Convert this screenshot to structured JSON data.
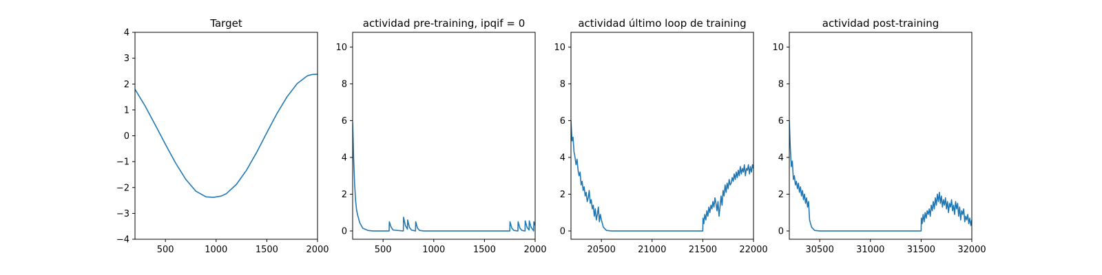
{
  "chart_data": [
    {
      "type": "line",
      "title": "Target",
      "xlim": [
        200,
        2000
      ],
      "ylim": [
        -4,
        4
      ],
      "xticks": [
        500,
        1000,
        1500,
        2000
      ],
      "yticks": [
        -4,
        -3,
        -2,
        -1,
        0,
        1,
        2,
        3,
        4
      ],
      "color": "#1f77b4",
      "series": [
        {
          "x": [
            200,
            300,
            400,
            500,
            600,
            700,
            800,
            900,
            975,
            1050,
            1100,
            1200,
            1300,
            1400,
            1500,
            1600,
            1700,
            1800,
            1900,
            1950,
            2000
          ],
          "y": [
            1.8,
            1.15,
            0.42,
            -0.33,
            -1.05,
            -1.68,
            -2.14,
            -2.36,
            -2.38,
            -2.33,
            -2.24,
            -1.88,
            -1.33,
            -0.64,
            0.12,
            0.86,
            1.51,
            2.02,
            2.32,
            2.37,
            2.38
          ]
        }
      ]
    },
    {
      "type": "line",
      "title": "actividad pre-training, ipqif = 0",
      "xlim": [
        200,
        2000
      ],
      "ylim": [
        -0.45,
        10.8
      ],
      "xticks": [
        500,
        1000,
        1500,
        2000
      ],
      "yticks": [
        0,
        2,
        4,
        6,
        8,
        10
      ],
      "color": "#1f77b4",
      "series": [
        {
          "x": [
            200,
            210,
            220,
            230,
            240,
            250,
            270,
            300,
            350,
            400,
            560,
            562,
            580,
            600,
            700,
            702,
            720,
            740,
            742,
            760,
            780,
            820,
            822,
            840,
            860,
            900,
            1000,
            1200,
            1400,
            1600,
            1750,
            1752,
            1770,
            1790,
            1830,
            1832,
            1850,
            1870,
            1900,
            1902,
            1920,
            1940,
            1942,
            1960,
            1980,
            1985,
            1987,
            2000
          ],
          "y": [
            5.9,
            3.9,
            2.5,
            1.6,
            1.1,
            0.85,
            0.45,
            0.15,
            0.03,
            0.0,
            0.0,
            0.5,
            0.2,
            0.05,
            0.0,
            0.75,
            0.3,
            0.1,
            0.6,
            0.2,
            0.05,
            0.0,
            0.5,
            0.15,
            0.03,
            0.0,
            0.0,
            0.0,
            0.0,
            0.0,
            0.0,
            0.5,
            0.15,
            0.03,
            0.0,
            0.5,
            0.15,
            0.03,
            0.0,
            0.55,
            0.2,
            0.05,
            0.55,
            0.2,
            0.05,
            0.0,
            0.5,
            0.3
          ]
        }
      ]
    },
    {
      "type": "line",
      "title": "actividad último loop de training",
      "xlim": [
        20200,
        22000
      ],
      "ylim": [
        -0.45,
        10.8
      ],
      "xticks": [
        20500,
        21000,
        21500,
        22000
      ],
      "yticks": [
        0,
        2,
        4,
        6,
        8,
        10
      ],
      "color": "#1f77b4",
      "series": [
        {
          "x": [
            20200,
            20210,
            20220,
            20230,
            20240,
            20250,
            20260,
            20270,
            20280,
            20290,
            20300,
            20310,
            20320,
            20330,
            20340,
            20350,
            20360,
            20370,
            20380,
            20390,
            20400,
            20410,
            20420,
            20430,
            20440,
            20450,
            20460,
            20470,
            20480,
            20490,
            20500,
            20520,
            20550,
            20600,
            20800,
            21000,
            21200,
            21400,
            21500,
            21502,
            21510,
            21520,
            21530,
            21540,
            21550,
            21560,
            21570,
            21580,
            21590,
            21600,
            21610,
            21620,
            21630,
            21640,
            21650,
            21660,
            21670,
            21680,
            21690,
            21700,
            21710,
            21720,
            21730,
            21740,
            21750,
            21760,
            21770,
            21780,
            21790,
            21800,
            21810,
            21820,
            21830,
            21840,
            21850,
            21860,
            21870,
            21880,
            21890,
            21900,
            21910,
            21920,
            21930,
            21940,
            21950,
            21960,
            21970,
            21980,
            21990,
            22000
          ],
          "y": [
            6.0,
            4.9,
            5.1,
            4.3,
            4.0,
            3.6,
            3.9,
            3.3,
            3.0,
            3.2,
            2.5,
            2.7,
            2.2,
            2.4,
            1.9,
            2.1,
            1.6,
            1.8,
            2.2,
            1.5,
            1.7,
            1.2,
            1.4,
            0.8,
            1.2,
            0.6,
            0.9,
            1.3,
            0.5,
            0.9,
            0.6,
            0.2,
            0.03,
            0.0,
            0.0,
            0.0,
            0.0,
            0.0,
            0.0,
            0.7,
            0.4,
            0.9,
            0.6,
            1.1,
            0.8,
            1.3,
            1.0,
            1.4,
            1.2,
            1.6,
            1.3,
            1.8,
            1.5,
            1.1,
            1.6,
            0.8,
            1.3,
            1.9,
            1.4,
            2.2,
            1.9,
            2.5,
            2.1,
            2.6,
            2.3,
            2.8,
            2.5,
            2.6,
            2.9,
            2.7,
            3.1,
            2.8,
            3.2,
            2.9,
            3.3,
            3.0,
            3.5,
            3.1,
            3.4,
            3.2,
            3.6,
            3.0,
            3.4,
            3.3,
            3.6,
            3.1,
            3.5,
            3.2,
            3.6,
            3.4
          ]
        }
      ]
    },
    {
      "type": "line",
      "title": "actividad post-training",
      "xlim": [
        30200,
        32000
      ],
      "ylim": [
        -0.45,
        10.8
      ],
      "xticks": [
        30500,
        31000,
        31500,
        32000
      ],
      "yticks": [
        0,
        2,
        4,
        6,
        8,
        10
      ],
      "color": "#1f77b4",
      "series": [
        {
          "x": [
            30200,
            30210,
            30220,
            30230,
            30240,
            30250,
            30260,
            30270,
            30280,
            30290,
            30300,
            30310,
            30320,
            30330,
            30340,
            30350,
            30360,
            30370,
            30380,
            30390,
            30400,
            30420,
            30450,
            30500,
            30700,
            30900,
            31100,
            31300,
            31500,
            31502,
            31510,
            31520,
            31530,
            31540,
            31550,
            31560,
            31570,
            31580,
            31590,
            31600,
            31610,
            31620,
            31630,
            31640,
            31650,
            31660,
            31670,
            31680,
            31690,
            31700,
            31710,
            31720,
            31730,
            31740,
            31750,
            31760,
            31770,
            31780,
            31790,
            31800,
            31810,
            31820,
            31830,
            31840,
            31850,
            31860,
            31870,
            31880,
            31890,
            31900,
            31910,
            31920,
            31930,
            31940,
            31950,
            31960,
            31970,
            31980,
            31990,
            32000
          ],
          "y": [
            6.0,
            4.5,
            3.5,
            3.8,
            2.8,
            3.0,
            2.5,
            2.7,
            2.3,
            2.6,
            2.1,
            2.4,
            1.9,
            2.2,
            1.7,
            2.0,
            1.5,
            1.8,
            1.3,
            1.6,
            0.6,
            0.2,
            0.03,
            0.0,
            0.0,
            0.0,
            0.0,
            0.0,
            0.0,
            0.7,
            0.4,
            0.9,
            0.5,
            1.0,
            0.7,
            1.1,
            0.9,
            1.2,
            0.8,
            1.4,
            1.1,
            1.6,
            1.2,
            1.8,
            1.4,
            2.0,
            1.6,
            2.1,
            1.5,
            1.9,
            1.3,
            1.7,
            1.4,
            1.8,
            1.2,
            1.6,
            1.0,
            1.5,
            1.3,
            1.7,
            1.1,
            1.4,
            0.9,
            1.6,
            1.2,
            1.5,
            0.8,
            1.3,
            0.6,
            1.1,
            0.9,
            1.2,
            0.5,
            0.8,
            0.6,
            0.9,
            0.4,
            0.7,
            0.3,
            0.6
          ]
        }
      ]
    }
  ]
}
